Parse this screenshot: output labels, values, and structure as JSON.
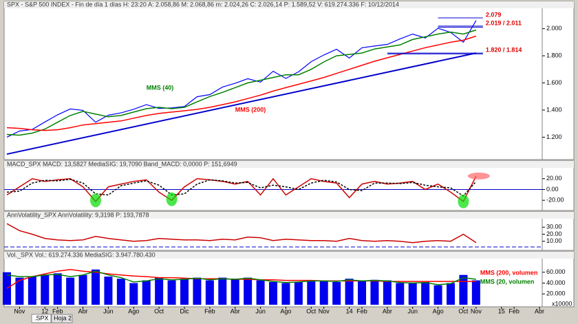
{
  "chart_data": [
    {
      "type": "line",
      "header": "SPX - S&P 500 INDEX - Fin de día 1 días H: 23:20 A: 2.058,86 M: 2.068,86 m: 2.024,26 C: 2.026,14 P: 1.589,52 V: 619.274.336 F: 10/12/2014",
      "ylim": [
        1050,
        2130
      ],
      "yticks": [
        {
          "value": 1200,
          "label": "1.200"
        },
        {
          "value": 1400,
          "label": "1.400"
        },
        {
          "value": 1600,
          "label": "1.600"
        },
        {
          "value": 1800,
          "label": "1.800"
        },
        {
          "value": 2000,
          "label": "2.000"
        }
      ],
      "series": [
        {
          "color": "#0000ff",
          "values": [
            1200,
            1245,
            1257,
            1312,
            1365,
            1408,
            1398,
            1310,
            1362,
            1379,
            1406,
            1440,
            1412,
            1416,
            1426,
            1498,
            1514,
            1569,
            1597,
            1631,
            1606,
            1686,
            1633,
            1682,
            1757,
            1806,
            1848,
            1783,
            1859,
            1872,
            1884,
            1924,
            1960,
            1931,
            2003,
            1972,
            1900,
            2060,
            null,
            null,
            null,
            null,
            null
          ]
        },
        {
          "name": "MMS (40)",
          "color": "#008000",
          "values": [
            1220,
            1215,
            1230,
            1260,
            1310,
            1360,
            1390,
            1370,
            1350,
            1360,
            1385,
            1410,
            1420,
            1410,
            1420,
            1460,
            1500,
            1530,
            1565,
            1600,
            1620,
            1640,
            1660,
            1660,
            1700,
            1755,
            1800,
            1810,
            1820,
            1850,
            1865,
            1880,
            1920,
            1940,
            1960,
            1975,
            1960,
            1990,
            null,
            null,
            null,
            null,
            null
          ]
        },
        {
          "name": "MMS (200)",
          "color": "#ff0000",
          "values": [
            1270,
            1265,
            1255,
            1250,
            1255,
            1270,
            1290,
            1300,
            1310,
            1320,
            1340,
            1360,
            1375,
            1385,
            1395,
            1405,
            1420,
            1440,
            1460,
            1485,
            1510,
            1540,
            1565,
            1590,
            1615,
            1640,
            1670,
            1700,
            1730,
            1760,
            1785,
            1810,
            1835,
            1860,
            1880,
            1900,
            1915,
            1945,
            null,
            null,
            null,
            null,
            null
          ]
        }
      ],
      "trendline": {
        "x": [
          0,
          37
        ],
        "values": [
          1075,
          1820
        ],
        "color": "#0000cc"
      },
      "annotations": [
        {
          "label": "2.079",
          "levels": [
            2079
          ],
          "x": [
            34,
            37
          ]
        },
        {
          "label": "2.019 / 2.011",
          "levels": [
            2019,
            2011
          ],
          "x": [
            34,
            37
          ]
        },
        {
          "label": "1.820 / 1.814",
          "levels": [
            1820,
            1814
          ],
          "x": [
            30,
            37
          ]
        }
      ]
    },
    {
      "type": "line",
      "header": "MACD_SPX MACD: 13,5827 MediaSIG: 19,7090 Band_MACD: 0,0000 P: 151,6949",
      "ylim": [
        -35,
        35
      ],
      "yticks": [
        {
          "value": 20,
          "label": "20.00"
        },
        {
          "value": 0,
          "label": "0.00"
        },
        {
          "value": -20,
          "label": "-20.00"
        }
      ],
      "series": [
        {
          "color": "#cc0000",
          "values": [
            -10,
            5,
            20,
            15,
            18,
            20,
            5,
            -22,
            5,
            10,
            15,
            18,
            -5,
            -20,
            5,
            20,
            18,
            15,
            10,
            15,
            -10,
            20,
            -10,
            5,
            20,
            15,
            12,
            -15,
            10,
            15,
            10,
            12,
            15,
            0,
            10,
            -5,
            -22,
            25,
            null,
            null,
            null,
            null,
            null
          ]
        },
        {
          "color": "#000000",
          "dash": true,
          "values": [
            -5,
            -3,
            12,
            17,
            16,
            19,
            12,
            -8,
            -10,
            7,
            12,
            16,
            8,
            -10,
            -8,
            10,
            18,
            16,
            12,
            13,
            3,
            8,
            5,
            0,
            12,
            17,
            14,
            0,
            -2,
            12,
            12,
            11,
            13,
            8,
            5,
            3,
            -12,
            15,
            null,
            null,
            null,
            null,
            null
          ]
        }
      ]
    },
    {
      "type": "line",
      "header": "AnnVolatility_SPX AnnVolatility: 9,3198 P: 193,7878",
      "ylim": [
        0,
        38
      ],
      "yticks": [
        {
          "value": 10,
          "label": "10.00"
        },
        {
          "value": 20,
          "label": "20.00"
        },
        {
          "value": 30,
          "label": "30.00"
        }
      ],
      "series": [
        {
          "color": "#cc0000",
          "values": [
            35,
            25,
            20,
            14,
            12,
            11,
            12,
            17,
            14,
            12,
            10,
            11,
            14,
            13,
            12,
            12,
            11,
            13,
            12,
            16,
            15,
            11,
            13,
            12,
            11,
            11,
            10,
            14,
            11,
            10,
            11,
            10,
            8,
            10,
            11,
            10,
            20,
            8,
            null,
            null,
            null,
            null,
            null
          ]
        }
      ]
    },
    {
      "type": "bar",
      "header": "Vol._SPX Vol.: 619.274.336 MediaSIG: 3.947.780.430",
      "ylim": [
        0,
        80
      ],
      "yticks": [
        {
          "value": 20,
          "label": "20.000"
        },
        {
          "value": 40,
          "label": "40.000"
        },
        {
          "value": 60,
          "label": "60.000"
        }
      ],
      "unit": "x10000",
      "color": "#0000ee",
      "values": [
        60,
        50,
        52,
        55,
        58,
        50,
        55,
        65,
        52,
        48,
        40,
        45,
        50,
        45,
        48,
        50,
        45,
        50,
        48,
        50,
        45,
        42,
        40,
        42,
        45,
        44,
        42,
        48,
        44,
        46,
        45,
        40,
        40,
        42,
        36,
        40,
        55,
        45,
        null,
        null,
        null,
        null,
        null
      ],
      "series": [
        {
          "name": "MMS (200, volumen",
          "color": "#ff0000",
          "values": [
            30,
            45,
            52,
            57,
            62,
            65,
            62,
            60,
            57,
            55,
            53,
            52,
            50,
            50,
            49,
            48,
            48,
            48,
            47,
            47,
            46,
            46,
            45,
            45,
            45,
            44,
            44,
            44,
            44,
            44,
            43,
            43,
            43,
            43,
            43,
            43,
            43,
            43,
            null,
            null,
            null,
            null,
            null
          ]
        },
        {
          "name": "MMS (20, volumen",
          "color": "#008000",
          "values": [
            55,
            52,
            52,
            55,
            56,
            52,
            55,
            62,
            55,
            50,
            42,
            44,
            48,
            46,
            47,
            49,
            46,
            48,
            47,
            49,
            46,
            43,
            41,
            42,
            44,
            44,
            43,
            46,
            44,
            45,
            44,
            41,
            40,
            41,
            37,
            39,
            50,
            47,
            null,
            null,
            null,
            null,
            null
          ]
        }
      ],
      "categories": [
        null,
        "Nov",
        null,
        "12",
        "Feb",
        null,
        "Abr",
        null,
        "Jun",
        null,
        "Ago",
        null,
        "Oct",
        null,
        "Dic",
        null,
        "Feb",
        null,
        "Abr",
        null,
        "Jun",
        null,
        "Ago",
        null,
        "Oct",
        "Nov",
        null,
        "14",
        "Feb",
        null,
        "Abr",
        null,
        "Jun",
        null,
        "Ago",
        null,
        "Oct",
        "Nov",
        null,
        "15",
        "Feb",
        null,
        "Abr"
      ]
    }
  ],
  "tabs": [
    ".SPX",
    "Hoja 2"
  ]
}
